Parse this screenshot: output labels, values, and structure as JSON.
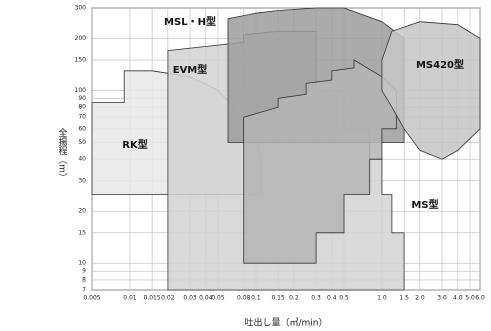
{
  "chart_data": {
    "type": "region",
    "x_label": "吐出し量（㎥/min）",
    "y_label": "全揚程（m）",
    "log_x": true,
    "log_y": true,
    "grid": true,
    "xlim": [
      0.005,
      6
    ],
    "ylim": [
      7,
      300
    ],
    "xticks": [
      0.005,
      0.01,
      0.015,
      0.02,
      0.03,
      0.04,
      0.05,
      0.08,
      0.1,
      0.15,
      0.2,
      0.3,
      0.4,
      0.5,
      {
        "value": 1,
        "label": "1.0"
      },
      1.5,
      {
        "value": 2,
        "label": "2.0"
      },
      {
        "value": 3,
        "label": "3.0"
      },
      {
        "value": 4,
        "label": "4.0"
      },
      {
        "value": 5,
        "label": "5.0"
      },
      {
        "value": 6,
        "label": "6.0"
      }
    ],
    "yticks": [
      7,
      8,
      9,
      10,
      15,
      20,
      30,
      40,
      50,
      60,
      70,
      80,
      90,
      100,
      150,
      200,
      300
    ],
    "series": [
      {
        "name": "RK型",
        "color": "#e8e8e8",
        "x": [
          0.005,
          0.005,
          0.009,
          0.009,
          0.015,
          0.03,
          0.05,
          0.08,
          0.1,
          0.11,
          0.11
        ],
        "values": [
          25,
          85,
          85,
          130,
          130,
          120,
          100,
          70,
          55,
          40,
          25
        ]
      },
      {
        "name": "EVM型",
        "color": "#d2d2d2",
        "x": [
          0.02,
          0.02,
          0.08,
          0.08,
          0.15,
          0.3,
          0.3,
          0.5,
          0.5,
          0.8,
          0.8,
          1,
          1,
          1.2,
          1.2,
          1.5,
          1.5
        ],
        "values": [
          7,
          170,
          190,
          210,
          220,
          220,
          100,
          100,
          60,
          60,
          40,
          40,
          25,
          25,
          15,
          15,
          7
        ]
      },
      {
        "name": "MSL・H型",
        "color": "#9c9c9c",
        "x": [
          0.06,
          0.06,
          0.1,
          0.15,
          0.3,
          0.5,
          1,
          1.5,
          1.5
        ],
        "values": [
          50,
          260,
          280,
          290,
          300,
          300,
          250,
          200,
          50
        ]
      },
      {
        "name": "MS型",
        "color": "#b4b4b4",
        "x": [
          0.08,
          0.08,
          0.15,
          0.15,
          0.25,
          0.25,
          0.4,
          0.4,
          0.6,
          0.6,
          1,
          1.3,
          1.3,
          1,
          1,
          0.8,
          0.8,
          0.5,
          0.5,
          0.3,
          0.3
        ],
        "values": [
          10,
          70,
          80,
          90,
          95,
          110,
          115,
          130,
          135,
          150,
          120,
          100,
          60,
          60,
          40,
          40,
          25,
          25,
          15,
          15,
          10
        ]
      },
      {
        "name": "MS420型",
        "color": "#c6c6c6",
        "x": [
          1,
          1.2,
          2,
          4,
          6,
          6,
          4,
          3,
          2,
          1.5,
          1.2,
          1
        ],
        "values": [
          150,
          220,
          250,
          240,
          200,
          60,
          45,
          40,
          45,
          60,
          80,
          100
        ]
      }
    ]
  }
}
